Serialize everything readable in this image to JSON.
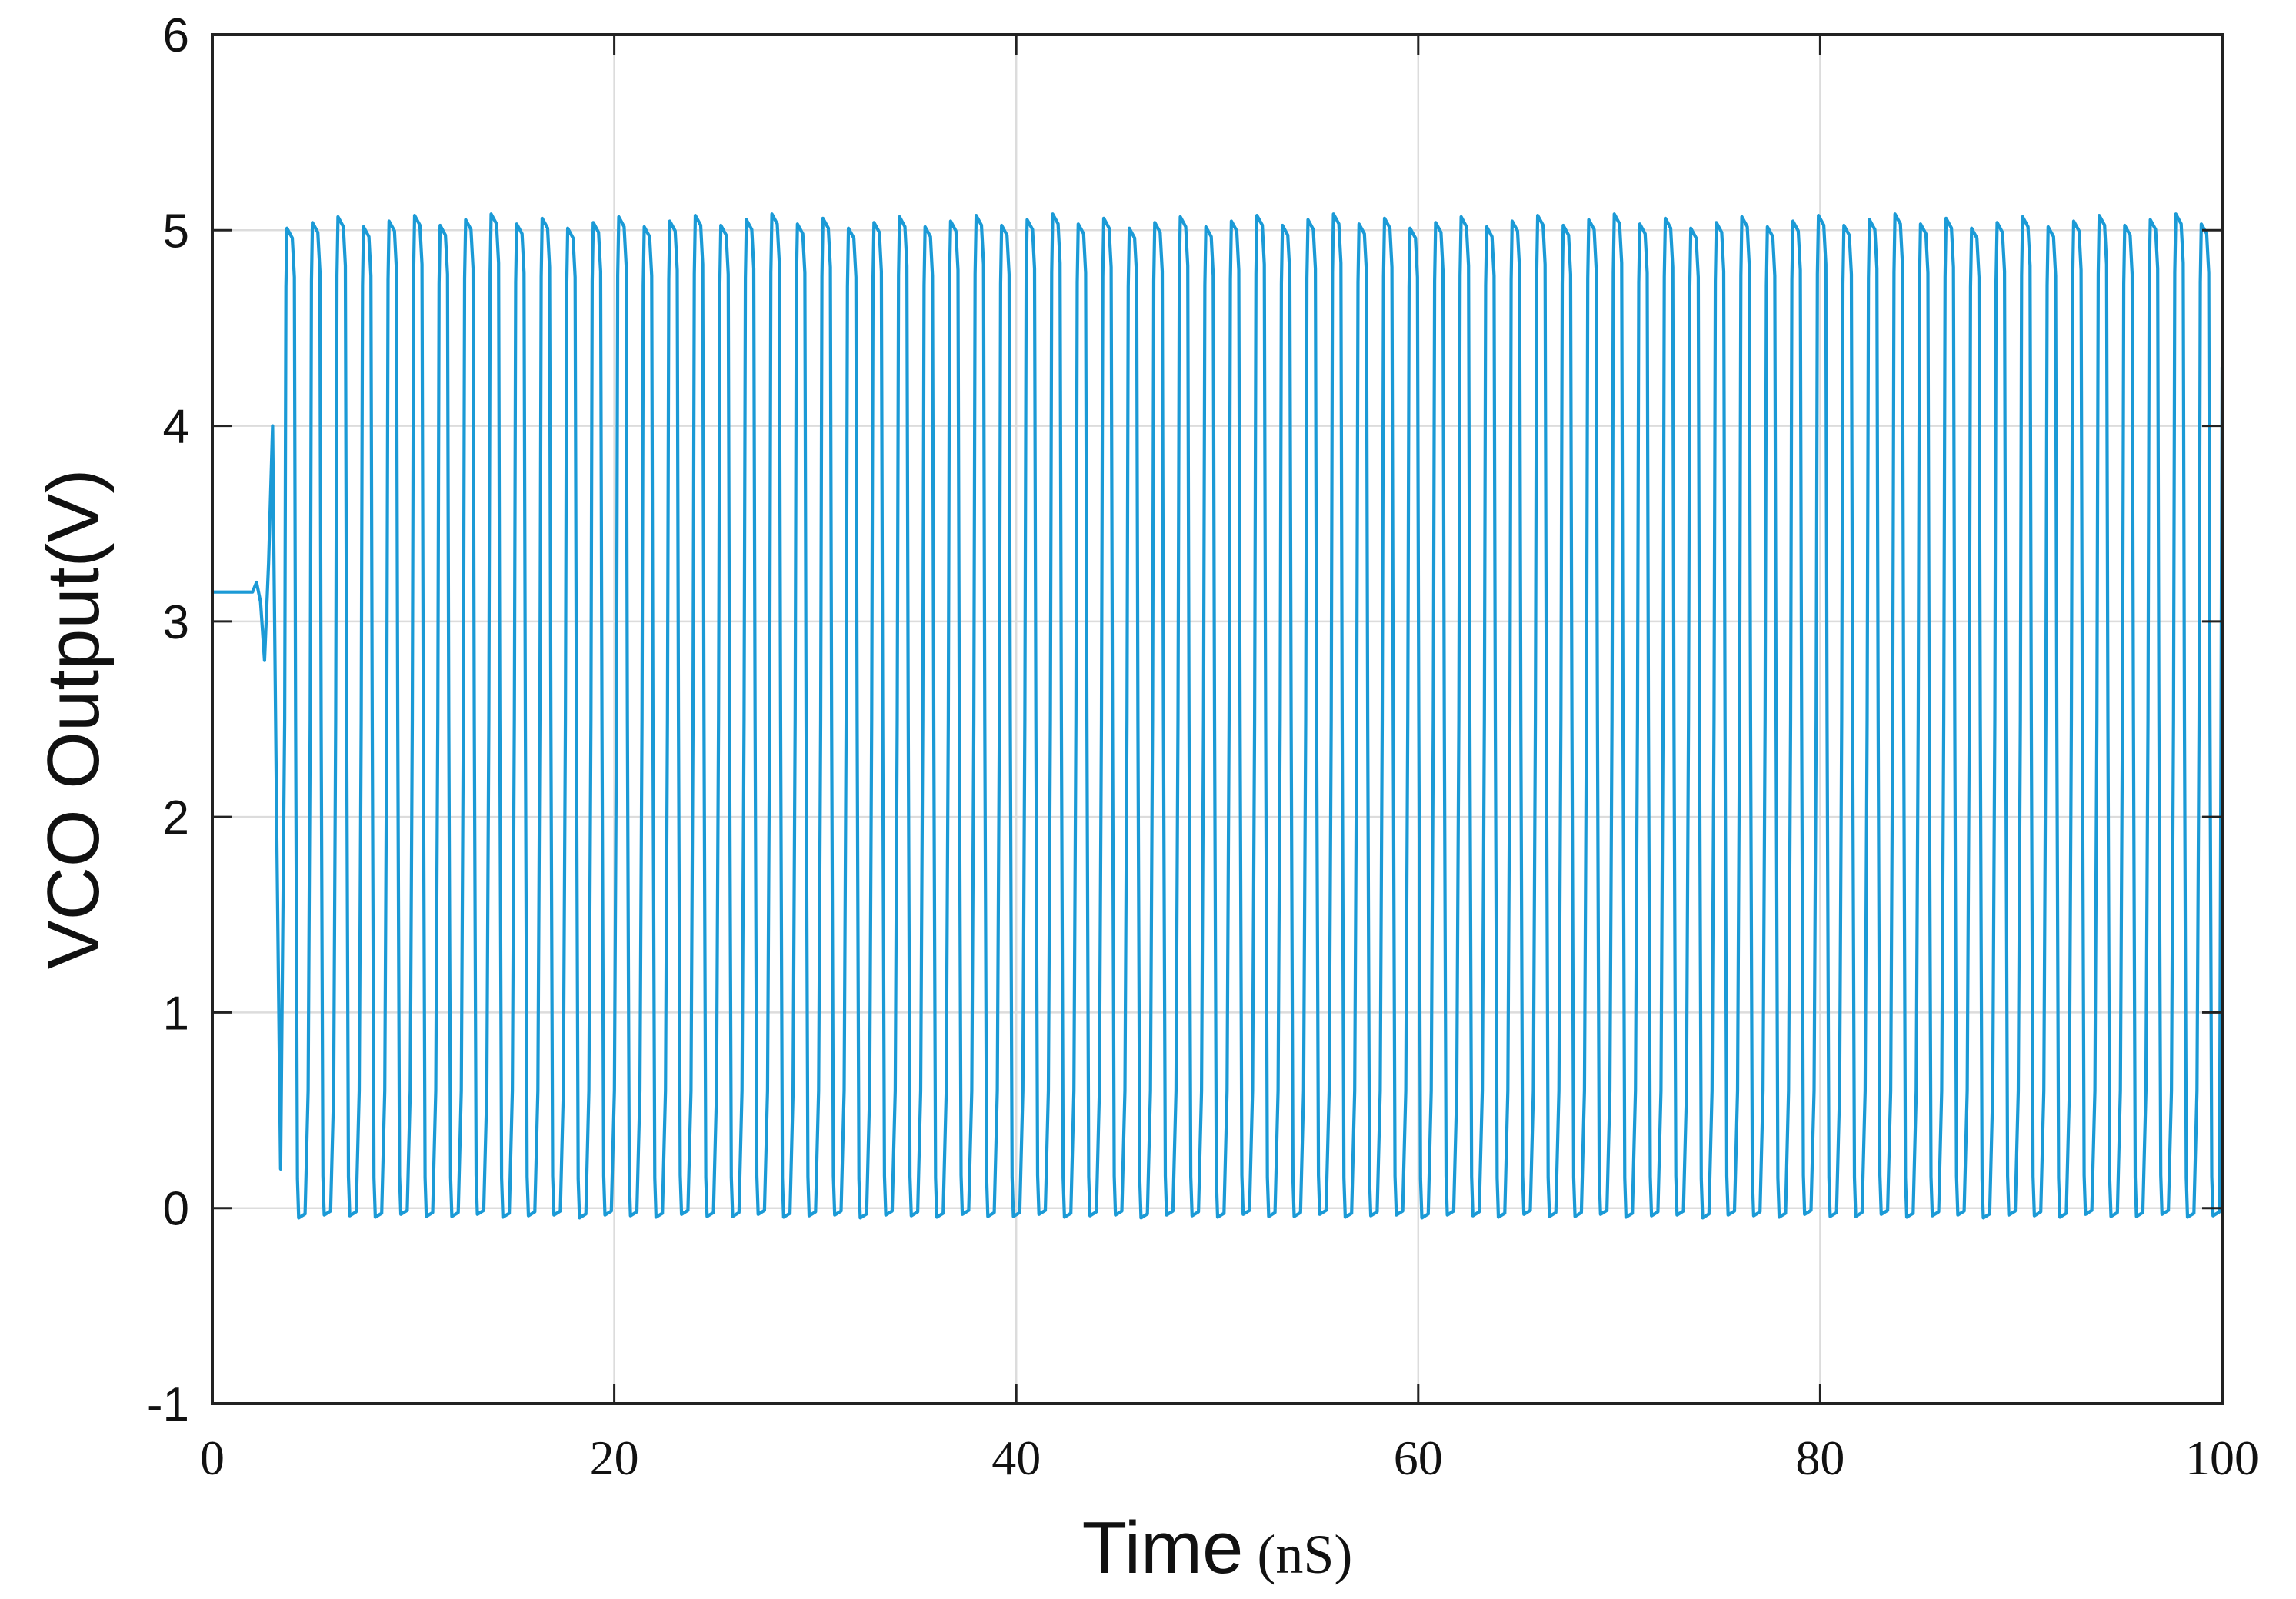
{
  "chart_data": {
    "type": "line",
    "title": "",
    "xlabel": "Time",
    "xlabel_unit": "(nS)",
    "ylabel": "VCO Output(V)",
    "xlim": [
      0,
      100
    ],
    "ylim": [
      -1,
      6
    ],
    "xticks": [
      "0",
      "20",
      "40",
      "60",
      "80",
      "100"
    ],
    "yticks": [
      "-1",
      "0",
      "1",
      "2",
      "3",
      "4",
      "5",
      "6"
    ],
    "grid": true,
    "line_color": "#1b9ad6",
    "series": [
      {
        "name": "",
        "description_points": {
          "initial_x": [
            0,
            2.0,
            2.2,
            2.4,
            2.6,
            2.8,
            3.0,
            3.2,
            3.4,
            3.6
          ],
          "initial_y": [
            3.15,
            3.15,
            3.2,
            3.1,
            2.8,
            3.3,
            4.0,
            2.0,
            0.2,
            2.5
          ]
        },
        "steady_state": {
          "start_x": 3.6,
          "end_x": 100,
          "period_ns": 1.27,
          "high_v": 5.05,
          "low_v": -0.03
        }
      }
    ]
  }
}
